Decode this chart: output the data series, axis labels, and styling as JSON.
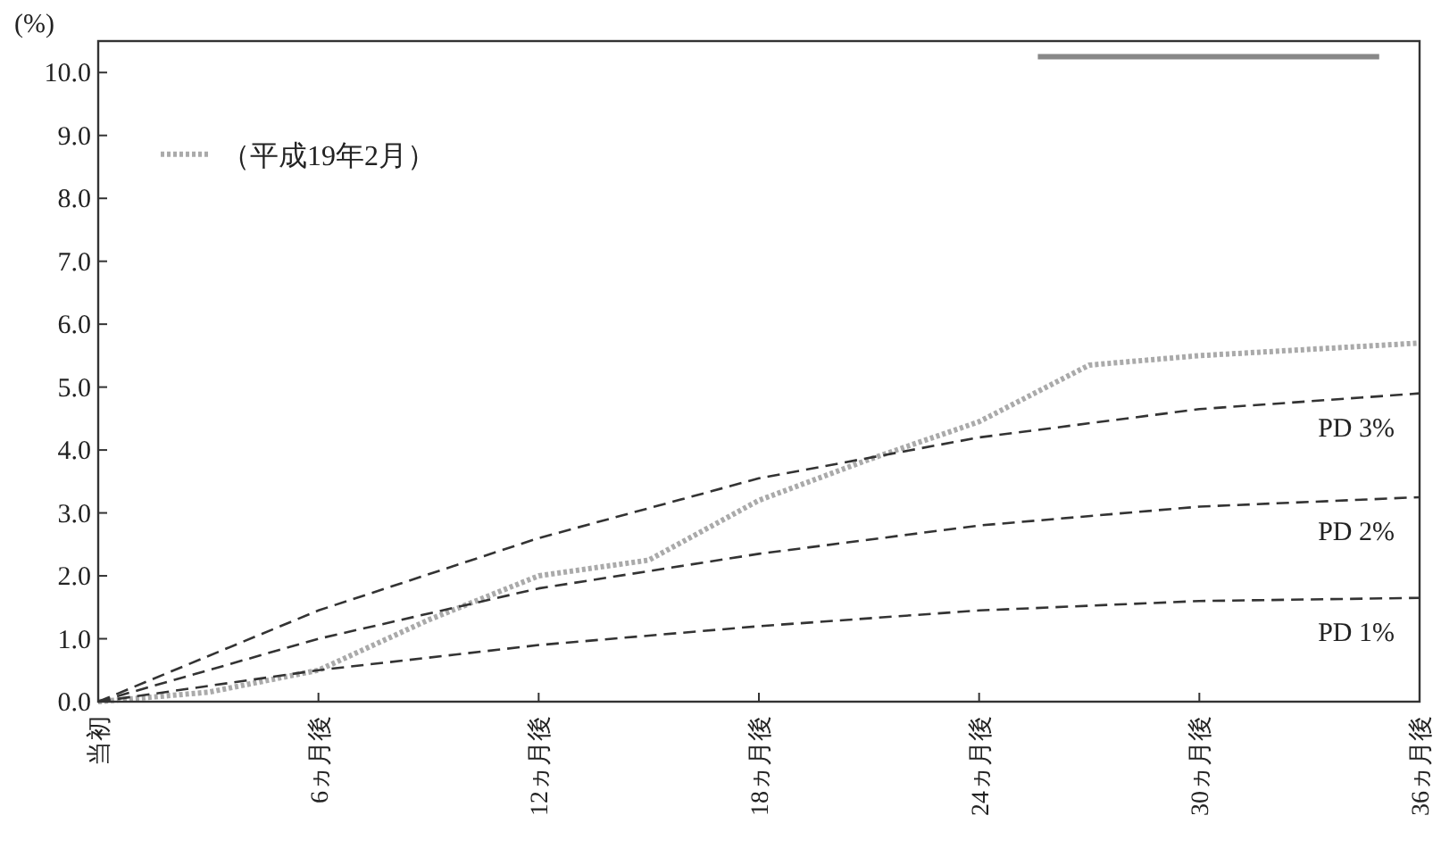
{
  "chart_data": {
    "type": "line",
    "ylabel": "(%)",
    "xlim": [
      0,
      36
    ],
    "ylim": [
      0,
      10.5
    ],
    "xticks": [
      {
        "value": 0,
        "label": "当初"
      },
      {
        "value": 6,
        "label": "6ヵ月後"
      },
      {
        "value": 12,
        "label": "12ヵ月後"
      },
      {
        "value": 18,
        "label": "18ヵ月後"
      },
      {
        "value": 24,
        "label": "24ヵ月後"
      },
      {
        "value": 30,
        "label": "30ヵ月後"
      },
      {
        "value": 36,
        "label": "36ヵ月後"
      }
    ],
    "yticks": [
      {
        "value": 0,
        "label": "0.0"
      },
      {
        "value": 1,
        "label": "1.0"
      },
      {
        "value": 2,
        "label": "2.0"
      },
      {
        "value": 3,
        "label": "3.0"
      },
      {
        "value": 4,
        "label": "4.0"
      },
      {
        "value": 5,
        "label": "5.0"
      },
      {
        "value": 6,
        "label": "6.0"
      },
      {
        "value": 7,
        "label": "7.0"
      },
      {
        "value": 8,
        "label": "8.0"
      },
      {
        "value": 9,
        "label": "9.0"
      },
      {
        "value": 10,
        "label": "10.0"
      }
    ],
    "grid": false,
    "legend": "top left",
    "marker": "none",
    "series": [
      {
        "name": "（平成19年2月）",
        "color": "#aaaaaa",
        "line_style": "dotted",
        "x": [
          0,
          3,
          6,
          9,
          12,
          15,
          18,
          21,
          24,
          27,
          30,
          33,
          36
        ],
        "values": [
          0,
          0.15,
          0.5,
          1.3,
          2.0,
          2.25,
          3.2,
          3.85,
          4.45,
          5.35,
          5.5,
          5.6,
          5.7
        ]
      },
      {
        "name": "PD 3%",
        "color": "#333333",
        "line_style": "dashed",
        "x": [
          0,
          6,
          12,
          18,
          24,
          30,
          36
        ],
        "values": [
          0,
          1.45,
          2.6,
          3.55,
          4.2,
          4.65,
          4.9
        ]
      },
      {
        "name": "PD 2%",
        "color": "#333333",
        "line_style": "dashed",
        "x": [
          0,
          6,
          12,
          18,
          24,
          30,
          36
        ],
        "values": [
          0,
          1.0,
          1.8,
          2.35,
          2.8,
          3.1,
          3.25
        ]
      },
      {
        "name": "PD 1%",
        "color": "#333333",
        "line_style": "dashed",
        "x": [
          0,
          6,
          12,
          18,
          24,
          30,
          36
        ],
        "values": [
          0,
          0.5,
          0.9,
          1.2,
          1.45,
          1.6,
          1.65
        ]
      },
      {
        "color": "#888888",
        "line_style": "solid",
        "x": [
          25.6,
          34.9
        ],
        "values": [
          10.25,
          10.25
        ]
      }
    ]
  }
}
